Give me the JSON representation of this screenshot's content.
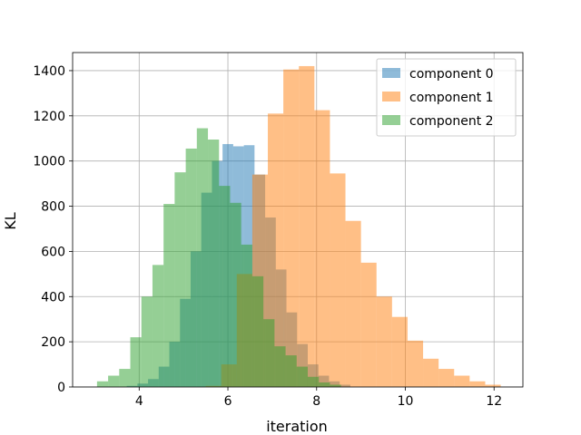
{
  "chart_data": {
    "type": "bar",
    "histogram": true,
    "title": "",
    "xlabel": "iteration",
    "ylabel": "KL",
    "xlim": [
      2.5,
      12.65
    ],
    "ylim": [
      0,
      1480
    ],
    "xticks": [
      4,
      6,
      8,
      10,
      12
    ],
    "yticks": [
      0,
      200,
      400,
      600,
      800,
      1000,
      1200,
      1400
    ],
    "grid": true,
    "legend": "top-right",
    "bin_width": 0.5,
    "series": [
      {
        "name": "component 0",
        "color": "#1f77b4",
        "opacity": 0.5,
        "bin_width": 0.24,
        "bins": [
          [
            3.72,
            5
          ],
          [
            3.96,
            15
          ],
          [
            4.2,
            35
          ],
          [
            4.44,
            90
          ],
          [
            4.68,
            200
          ],
          [
            4.92,
            390
          ],
          [
            5.16,
            600
          ],
          [
            5.4,
            860
          ],
          [
            5.64,
            1000
          ],
          [
            5.88,
            1075
          ],
          [
            6.12,
            1065
          ],
          [
            6.36,
            1070
          ],
          [
            6.6,
            940
          ],
          [
            6.84,
            750
          ],
          [
            7.08,
            520
          ],
          [
            7.32,
            330
          ],
          [
            7.56,
            190
          ],
          [
            7.8,
            100
          ],
          [
            8.04,
            50
          ],
          [
            8.28,
            25
          ],
          [
            8.52,
            10
          ]
        ]
      },
      {
        "name": "component 1",
        "color": "#ff7f0e",
        "opacity": 0.5,
        "bin_width": 0.35,
        "bins": [
          [
            5.5,
            5
          ],
          [
            5.85,
            100
          ],
          [
            6.2,
            500
          ],
          [
            6.55,
            940
          ],
          [
            6.9,
            1210
          ],
          [
            7.25,
            1405
          ],
          [
            7.6,
            1420
          ],
          [
            7.95,
            1225
          ],
          [
            8.3,
            945
          ],
          [
            8.65,
            735
          ],
          [
            9.0,
            550
          ],
          [
            9.35,
            400
          ],
          [
            9.7,
            310
          ],
          [
            10.05,
            205
          ],
          [
            10.4,
            125
          ],
          [
            10.75,
            80
          ],
          [
            11.1,
            50
          ],
          [
            11.45,
            25
          ],
          [
            11.8,
            10
          ]
        ]
      },
      {
        "name": "component 2",
        "color": "#2ca02c",
        "opacity": 0.5,
        "bin_width": 0.25,
        "bins": [
          [
            3.05,
            25
          ],
          [
            3.3,
            50
          ],
          [
            3.55,
            80
          ],
          [
            3.8,
            220
          ],
          [
            4.05,
            400
          ],
          [
            4.3,
            540
          ],
          [
            4.55,
            810
          ],
          [
            4.8,
            950
          ],
          [
            5.05,
            1055
          ],
          [
            5.3,
            1145
          ],
          [
            5.55,
            1095
          ],
          [
            5.8,
            890
          ],
          [
            6.05,
            815
          ],
          [
            6.3,
            630
          ],
          [
            6.55,
            490
          ],
          [
            6.8,
            300
          ],
          [
            7.05,
            180
          ],
          [
            7.3,
            140
          ],
          [
            7.55,
            90
          ],
          [
            7.8,
            45
          ],
          [
            8.05,
            20
          ],
          [
            8.3,
            10
          ]
        ]
      }
    ]
  }
}
